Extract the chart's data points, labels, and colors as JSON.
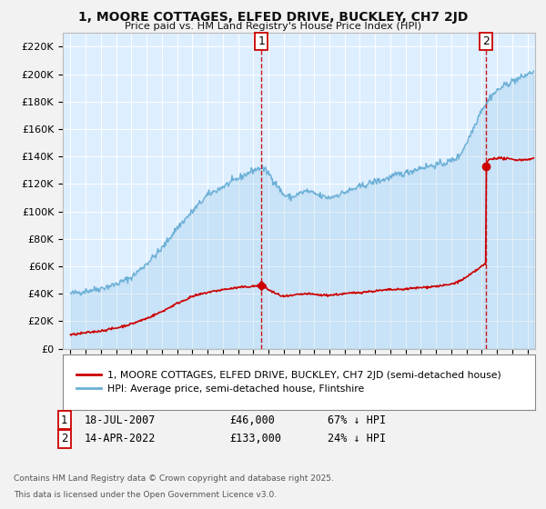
{
  "title": "1, MOORE COTTAGES, ELFED DRIVE, BUCKLEY, CH7 2JD",
  "subtitle": "Price paid vs. HM Land Registry's House Price Index (HPI)",
  "legend_line1": "1, MOORE COTTAGES, ELFED DRIVE, BUCKLEY, CH7 2JD (semi-detached house)",
  "legend_line2": "HPI: Average price, semi-detached house, Flintshire",
  "sale1_label": "1",
  "sale1_date": "18-JUL-2007",
  "sale1_price": "£46,000",
  "sale1_pct": "67% ↓ HPI",
  "sale1_year": 2007.54,
  "sale1_value": 46000,
  "sale2_label": "2",
  "sale2_date": "14-APR-2022",
  "sale2_price": "£133,000",
  "sale2_pct": "24% ↓ HPI",
  "sale2_year": 2022.29,
  "sale2_value": 133000,
  "footer1": "Contains HM Land Registry data © Crown copyright and database right 2025.",
  "footer2": "This data is licensed under the Open Government Licence v3.0.",
  "fig_bg_color": "#f2f2f2",
  "plot_bg_color": "#ddeeff",
  "hpi_color": "#6aafd6",
  "price_color": "#cc0000",
  "vline_color": "#cc0000",
  "grid_color": "#ffffff",
  "ylim": [
    0,
    230000
  ],
  "xlim_start": 1994.5,
  "xlim_end": 2025.5,
  "yticks": [
    0,
    20000,
    40000,
    60000,
    80000,
    100000,
    120000,
    140000,
    160000,
    180000,
    200000,
    220000
  ],
  "yticklabels": [
    "£0",
    "£20K",
    "£40K",
    "£60K",
    "£80K",
    "£100K",
    "£120K",
    "£140K",
    "£160K",
    "£180K",
    "£200K",
    "£220K"
  ]
}
